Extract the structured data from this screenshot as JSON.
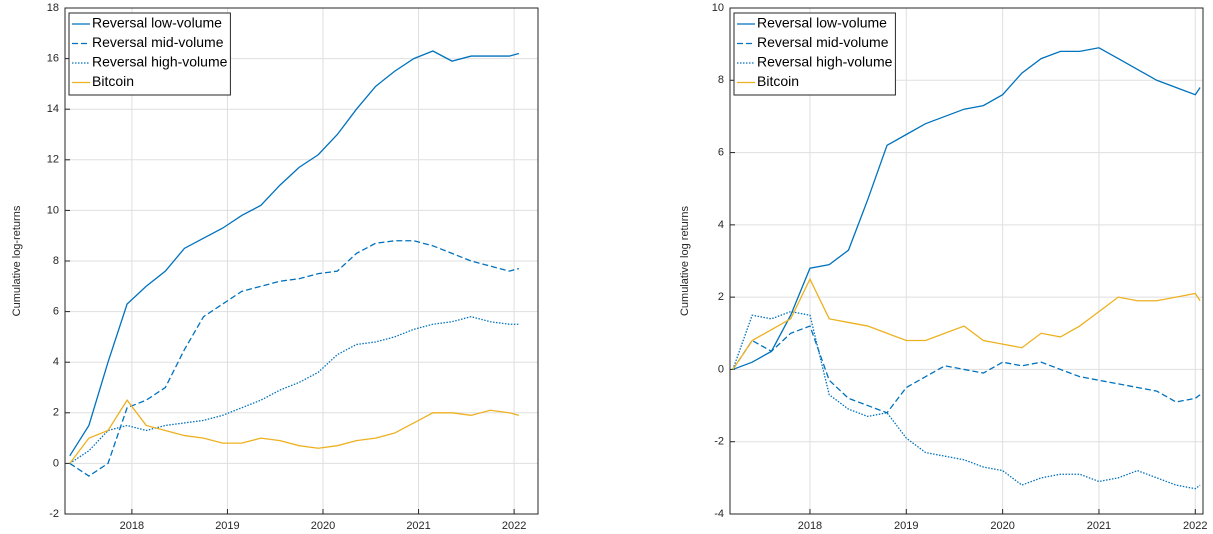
{
  "chart_data": [
    {
      "type": "line",
      "ylabel": "Cumulative log-returns",
      "xlim": [
        2017.3,
        2022.25
      ],
      "xticks": [
        2018,
        2019,
        2020,
        2021,
        2022
      ],
      "ylim": [
        -2,
        18
      ],
      "yticks": [
        -2,
        0,
        2,
        4,
        6,
        8,
        10,
        12,
        14,
        16,
        18
      ],
      "grid": true,
      "legend": "upper-left",
      "x": [
        2017.35,
        2017.55,
        2017.75,
        2017.95,
        2018.15,
        2018.35,
        2018.55,
        2018.75,
        2018.95,
        2019.15,
        2019.35,
        2019.55,
        2019.75,
        2019.95,
        2020.15,
        2020.35,
        2020.55,
        2020.75,
        2020.95,
        2021.15,
        2021.35,
        2021.55,
        2021.75,
        2021.95,
        2022.05
      ],
      "series": [
        {
          "name": "Reversal low-volume",
          "color": "#0072bd",
          "linestyle": "solid",
          "values": [
            0.3,
            1.5,
            4,
            6.3,
            7,
            7.6,
            8.5,
            8.9,
            9.3,
            9.8,
            10.2,
            11,
            11.7,
            12.2,
            13,
            14,
            14.9,
            15.5,
            16,
            16.3,
            15.9,
            16.1,
            16.1,
            16.1,
            16.2
          ]
        },
        {
          "name": "Reversal mid-volume",
          "color": "#0072bd",
          "linestyle": "dashed",
          "values": [
            0,
            -0.5,
            0,
            2.2,
            2.5,
            3,
            4.5,
            5.8,
            6.3,
            6.8,
            7,
            7.2,
            7.3,
            7.5,
            7.6,
            8.3,
            8.7,
            8.8,
            8.8,
            8.6,
            8.3,
            8,
            7.8,
            7.6,
            7.7
          ]
        },
        {
          "name": "Reversal high-volume",
          "color": "#0072bd",
          "linestyle": "dotted",
          "values": [
            0,
            0.5,
            1.3,
            1.5,
            1.3,
            1.5,
            1.6,
            1.7,
            1.9,
            2.2,
            2.5,
            2.9,
            3.2,
            3.6,
            4.3,
            4.7,
            4.8,
            5,
            5.3,
            5.5,
            5.6,
            5.8,
            5.6,
            5.5,
            5.5
          ]
        },
        {
          "name": "Bitcoin",
          "color": "#edb120",
          "linestyle": "solid",
          "values": [
            0,
            1,
            1.3,
            2.5,
            1.5,
            1.3,
            1.1,
            1,
            0.8,
            0.8,
            1,
            0.9,
            0.7,
            0.6,
            0.7,
            0.9,
            1,
            1.2,
            1.6,
            2,
            2,
            1.9,
            2.1,
            2,
            1.9
          ]
        }
      ]
    },
    {
      "type": "line",
      "ylabel": "Cumulative log returns",
      "xlim": [
        2017.17,
        2022.08
      ],
      "xticks": [
        2018,
        2019,
        2020,
        2021,
        2022
      ],
      "ylim": [
        -4,
        10
      ],
      "yticks": [
        -4,
        -2,
        0,
        2,
        4,
        6,
        8,
        10
      ],
      "grid": true,
      "legend": "upper-left",
      "x": [
        2017.2,
        2017.4,
        2017.6,
        2017.8,
        2018.0,
        2018.2,
        2018.4,
        2018.6,
        2018.8,
        2019.0,
        2019.2,
        2019.4,
        2019.6,
        2019.8,
        2020.0,
        2020.2,
        2020.4,
        2020.6,
        2020.8,
        2021.0,
        2021.2,
        2021.4,
        2021.6,
        2021.8,
        2022.0,
        2022.05
      ],
      "series": [
        {
          "name": "Reversal low-volume",
          "color": "#0072bd",
          "linestyle": "solid",
          "values": [
            0,
            0.2,
            0.5,
            1.5,
            2.8,
            2.9,
            3.3,
            4.7,
            6.2,
            6.5,
            6.8,
            7.0,
            7.2,
            7.3,
            7.6,
            8.2,
            8.6,
            8.8,
            8.8,
            8.9,
            8.6,
            8.3,
            8.0,
            7.8,
            7.6,
            7.8
          ]
        },
        {
          "name": "Reversal mid-volume",
          "color": "#0072bd",
          "linestyle": "dashed",
          "values": [
            0,
            0.8,
            0.5,
            1.0,
            1.2,
            -0.3,
            -0.8,
            -1.0,
            -1.2,
            -0.5,
            -0.2,
            0.1,
            0.0,
            -0.1,
            0.2,
            0.1,
            0.2,
            0.0,
            -0.2,
            -0.3,
            -0.4,
            -0.5,
            -0.6,
            -0.9,
            -0.8,
            -0.7
          ]
        },
        {
          "name": "Reversal high-volume",
          "color": "#0072bd",
          "linestyle": "dotted",
          "values": [
            0,
            1.5,
            1.4,
            1.6,
            1.5,
            -0.7,
            -1.1,
            -1.3,
            -1.2,
            -1.9,
            -2.3,
            -2.4,
            -2.5,
            -2.7,
            -2.8,
            -3.2,
            -3.0,
            -2.9,
            -2.9,
            -3.1,
            -3.0,
            -2.8,
            -3.0,
            -3.2,
            -3.3,
            -3.2
          ]
        },
        {
          "name": "Bitcoin",
          "color": "#edb120",
          "linestyle": "solid",
          "values": [
            0,
            0.8,
            1.1,
            1.4,
            2.5,
            1.4,
            1.3,
            1.2,
            1.0,
            0.8,
            0.8,
            1.0,
            1.2,
            0.8,
            0.7,
            0.6,
            1.0,
            0.9,
            1.2,
            1.6,
            2.0,
            1.9,
            1.9,
            2.0,
            2.1,
            1.9
          ]
        }
      ]
    }
  ]
}
